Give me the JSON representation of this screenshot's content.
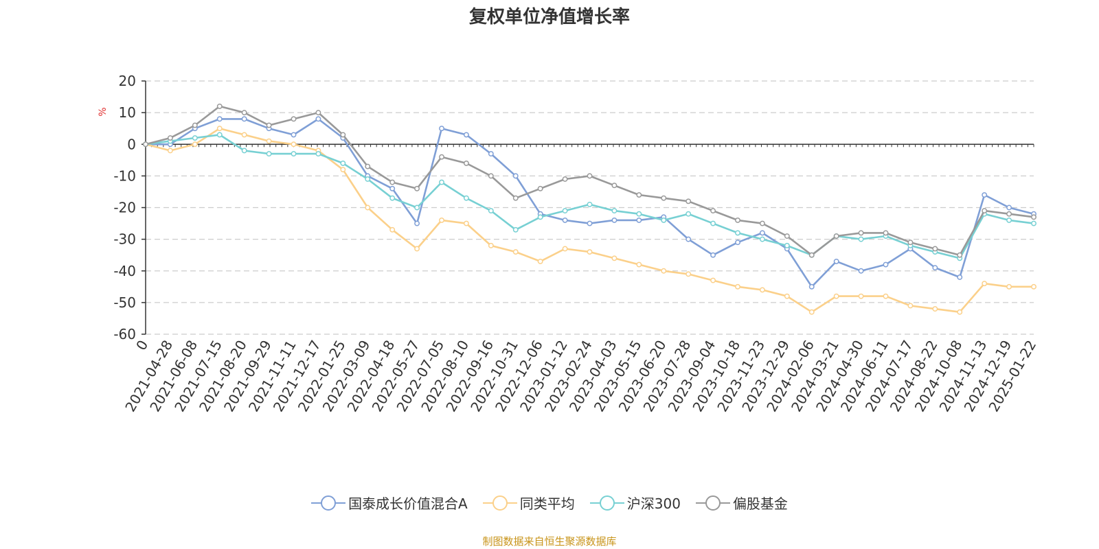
{
  "chart_data": {
    "type": "line",
    "title": "复权单位净值增长率",
    "ylabel": "%",
    "xlabel": "",
    "ylim": [
      -60,
      20
    ],
    "yticks": [
      20,
      10,
      0,
      -10,
      -20,
      -30,
      -40,
      -50,
      -60
    ],
    "grid": true,
    "legend_position": "bottom",
    "x": [
      "0",
      "2021-04-28",
      "2021-06-08",
      "2021-07-15",
      "2021-08-20",
      "2021-09-29",
      "2021-11-11",
      "2021-12-17",
      "2022-01-25",
      "2022-03-09",
      "2022-04-18",
      "2022-05-27",
      "2022-07-05",
      "2022-08-10",
      "2022-09-16",
      "2022-10-31",
      "2022-12-06",
      "2023-01-12",
      "2023-02-24",
      "2023-04-03",
      "2023-05-15",
      "2023-06-20",
      "2023-07-28",
      "2023-09-04",
      "2023-10-18",
      "2023-11-23",
      "2023-12-29",
      "2024-02-06",
      "2024-03-21",
      "2024-04-30",
      "2024-06-11",
      "2024-07-17",
      "2024-08-22",
      "2024-10-08",
      "2024-11-13",
      "2024-12-19",
      "2025-01-22"
    ],
    "series": [
      {
        "name": "国泰成长价值混合A",
        "color": "#7f9fd6",
        "values": [
          0,
          0,
          5,
          8,
          8,
          5,
          3,
          8,
          2,
          -10,
          -14,
          -25,
          5,
          3,
          -3,
          -10,
          -22,
          -24,
          -25,
          -24,
          -24,
          -23,
          -30,
          -35,
          -31,
          -28,
          -33,
          -45,
          -37,
          -40,
          -38,
          -33,
          -39,
          -42,
          -16,
          -20,
          -22
        ]
      },
      {
        "name": "同类平均",
        "color": "#fbd08a",
        "values": [
          0,
          -2,
          0,
          5,
          3,
          1,
          0,
          -2,
          -8,
          -20,
          -27,
          -33,
          -24,
          -25,
          -32,
          -34,
          -37,
          -33,
          -34,
          -36,
          -38,
          -40,
          -41,
          -43,
          -45,
          -46,
          -48,
          -53,
          -48,
          -48,
          -48,
          -51,
          -52,
          -53,
          -44,
          -45,
          -45
        ]
      },
      {
        "name": "沪深300",
        "color": "#77d0d3",
        "values": [
          0,
          1,
          2,
          3,
          -2,
          -3,
          -3,
          -3,
          -6,
          -11,
          -17,
          -20,
          -12,
          -17,
          -21,
          -27,
          -23,
          -21,
          -19,
          -21,
          -22,
          -24,
          -22,
          -25,
          -28,
          -30,
          -32,
          -35,
          -29,
          -30,
          -29,
          -32,
          -34,
          -36,
          -22,
          -24,
          -25
        ]
      },
      {
        "name": "偏股基金",
        "color": "#999999",
        "values": [
          0,
          2,
          6,
          12,
          10,
          6,
          8,
          10,
          3,
          -7,
          -12,
          -14,
          -4,
          -6,
          -10,
          -17,
          -14,
          -11,
          -10,
          -13,
          -16,
          -17,
          -18,
          -21,
          -24,
          -25,
          -29,
          -35,
          -29,
          -28,
          -28,
          -31,
          -33,
          -35,
          -21,
          -22,
          -23
        ]
      }
    ]
  },
  "legend": {
    "items": [
      {
        "label": "国泰成长价值混合A"
      },
      {
        "label": "同类平均"
      },
      {
        "label": "沪深300"
      },
      {
        "label": "偏股基金"
      }
    ]
  },
  "source": "制图数据来自恒生聚源数据库"
}
